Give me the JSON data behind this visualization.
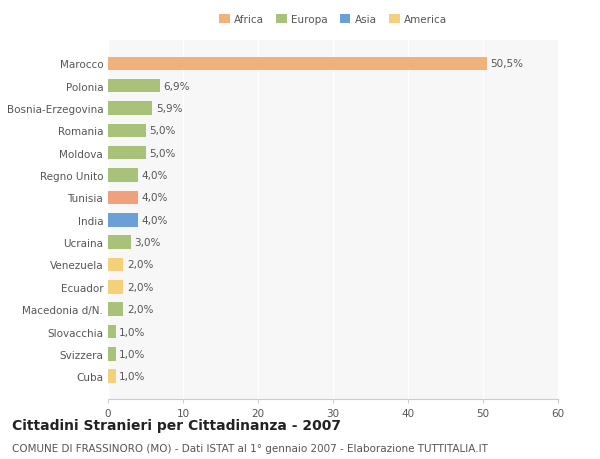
{
  "categories": [
    "Marocco",
    "Polonia",
    "Bosnia-Erzegovina",
    "Romania",
    "Moldova",
    "Regno Unito",
    "Tunisia",
    "India",
    "Ucraina",
    "Venezuela",
    "Ecuador",
    "Macedonia d/N.",
    "Slovacchia",
    "Svizzera",
    "Cuba"
  ],
  "values": [
    50.5,
    6.9,
    5.9,
    5.0,
    5.0,
    4.0,
    4.0,
    4.0,
    3.0,
    2.0,
    2.0,
    2.0,
    1.0,
    1.0,
    1.0
  ],
  "labels": [
    "50,5%",
    "6,9%",
    "5,9%",
    "5,0%",
    "5,0%",
    "4,0%",
    "4,0%",
    "4,0%",
    "3,0%",
    "2,0%",
    "2,0%",
    "2,0%",
    "1,0%",
    "1,0%",
    "1,0%"
  ],
  "colors": [
    "#F0B27A",
    "#A9C27A",
    "#A9C27A",
    "#A9C27A",
    "#A9C27A",
    "#A9C27A",
    "#F0A07A",
    "#6A9FD8",
    "#A9C27A",
    "#F5D07A",
    "#F5D07A",
    "#A9C27A",
    "#A9C27A",
    "#A9C27A",
    "#F5D07A"
  ],
  "legend": {
    "Africa": "#F0B27A",
    "Europa": "#A9C27A",
    "Asia": "#6A9FD8",
    "America": "#F5D07A"
  },
  "xlim": [
    0,
    60
  ],
  "xticks": [
    0,
    10,
    20,
    30,
    40,
    50,
    60
  ],
  "title": "Cittadini Stranieri per Cittadinanza - 2007",
  "subtitle": "COMUNE DI FRASSINORO (MO) - Dati ISTAT al 1° gennaio 2007 - Elaborazione TUTTITALIA.IT",
  "bg_color": "#FFFFFF",
  "plot_bg_color": "#F7F7F7",
  "bar_height": 0.6,
  "title_fontsize": 10,
  "subtitle_fontsize": 7.5,
  "tick_fontsize": 7.5,
  "label_fontsize": 7.5
}
